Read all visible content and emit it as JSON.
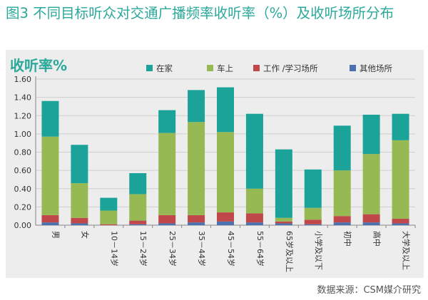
{
  "figure": {
    "title": "图3  不同目标听众对交通广播频率收听率（%）及收听场所分布",
    "source": "数据来源：CSM媒介研究"
  },
  "colors": {
    "title": "#2aa89a",
    "panel_bg": "#ededed",
    "在家": "#1ba39a",
    "车上": "#97b954",
    "工作/学习场所": "#c0484a",
    "其他场所": "#4a72b0"
  },
  "chart_data": {
    "type": "bar",
    "stacked": true,
    "ylabel": "收听率%",
    "ylim": [
      0,
      1.6
    ],
    "yticks": [
      "0.00",
      "0.20",
      "0.40",
      "0.60",
      "0.80",
      "1.00",
      "1.20",
      "1.40",
      "1.60"
    ],
    "grid": true,
    "legend_position": "top",
    "categories": [
      "男",
      "女",
      "10－14岁",
      "15－24岁",
      "25－34岁",
      "35－44岁",
      "45－54岁",
      "55－64岁",
      "65岁及以上",
      "小学及以下",
      "初中",
      "高中",
      "大学及以上"
    ],
    "series": [
      {
        "name": "其他场所",
        "color": "#4a72b0",
        "values": [
          0.03,
          0.02,
          0.0,
          0.01,
          0.02,
          0.03,
          0.04,
          0.03,
          0.02,
          0.01,
          0.03,
          0.03,
          0.02
        ]
      },
      {
        "name": "工作 /学习场所",
        "color": "#c0484a",
        "values": [
          0.08,
          0.06,
          0.01,
          0.04,
          0.09,
          0.08,
          0.1,
          0.1,
          0.02,
          0.05,
          0.07,
          0.09,
          0.05
        ]
      },
      {
        "name": "车上",
        "color": "#97b954",
        "values": [
          0.86,
          0.38,
          0.15,
          0.29,
          0.9,
          1.02,
          0.88,
          0.27,
          0.04,
          0.13,
          0.5,
          0.66,
          0.86
        ]
      },
      {
        "name": "在家",
        "color": "#1ba39a",
        "values": [
          0.39,
          0.42,
          0.14,
          0.23,
          0.25,
          0.35,
          0.49,
          0.82,
          0.75,
          0.42,
          0.49,
          0.43,
          0.29
        ]
      }
    ],
    "legend_order": [
      "在家",
      "车上",
      "工作 /学习场所",
      "其他场所"
    ]
  }
}
